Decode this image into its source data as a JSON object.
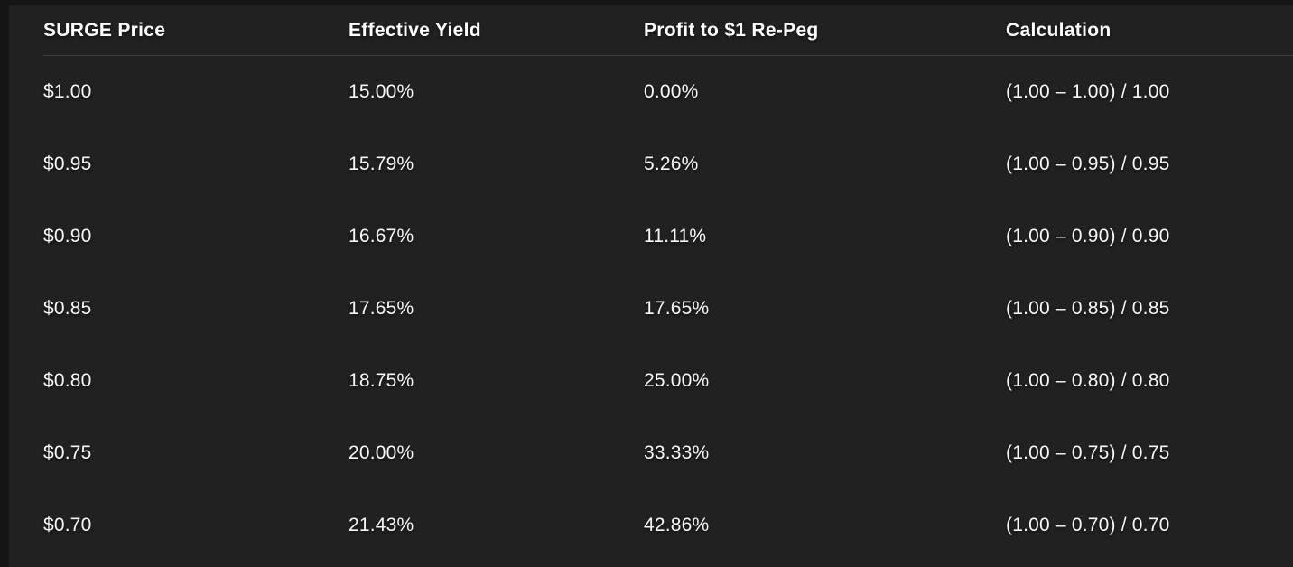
{
  "chart_data": {
    "type": "table",
    "columns": [
      "SURGE Price",
      "Effective Yield",
      "Profit to $1 Re-Peg",
      "Calculation"
    ],
    "rows": [
      [
        "$1.00",
        "15.00%",
        "0.00%",
        "(1.00 – 1.00) / 1.00"
      ],
      [
        "$0.95",
        "15.79%",
        "5.26%",
        "(1.00 – 0.95) / 0.95"
      ],
      [
        "$0.90",
        "16.67%",
        "11.11%",
        "(1.00 – 0.90) / 0.90"
      ],
      [
        "$0.85",
        "17.65%",
        "17.65%",
        "(1.00 – 0.85) / 0.85"
      ],
      [
        "$0.80",
        "18.75%",
        "25.00%",
        "(1.00 – 0.80) / 0.80"
      ],
      [
        "$0.75",
        "20.00%",
        "33.33%",
        "(1.00 – 0.75) / 0.75"
      ],
      [
        "$0.70",
        "21.43%",
        "42.86%",
        "(1.00 – 0.70) / 0.70"
      ]
    ]
  },
  "colors": {
    "page_bg": "#151515",
    "panel_bg": "#212121",
    "divider": "#3b3b3b",
    "text": "#f7f7f7",
    "header_text": "#ffffff"
  }
}
